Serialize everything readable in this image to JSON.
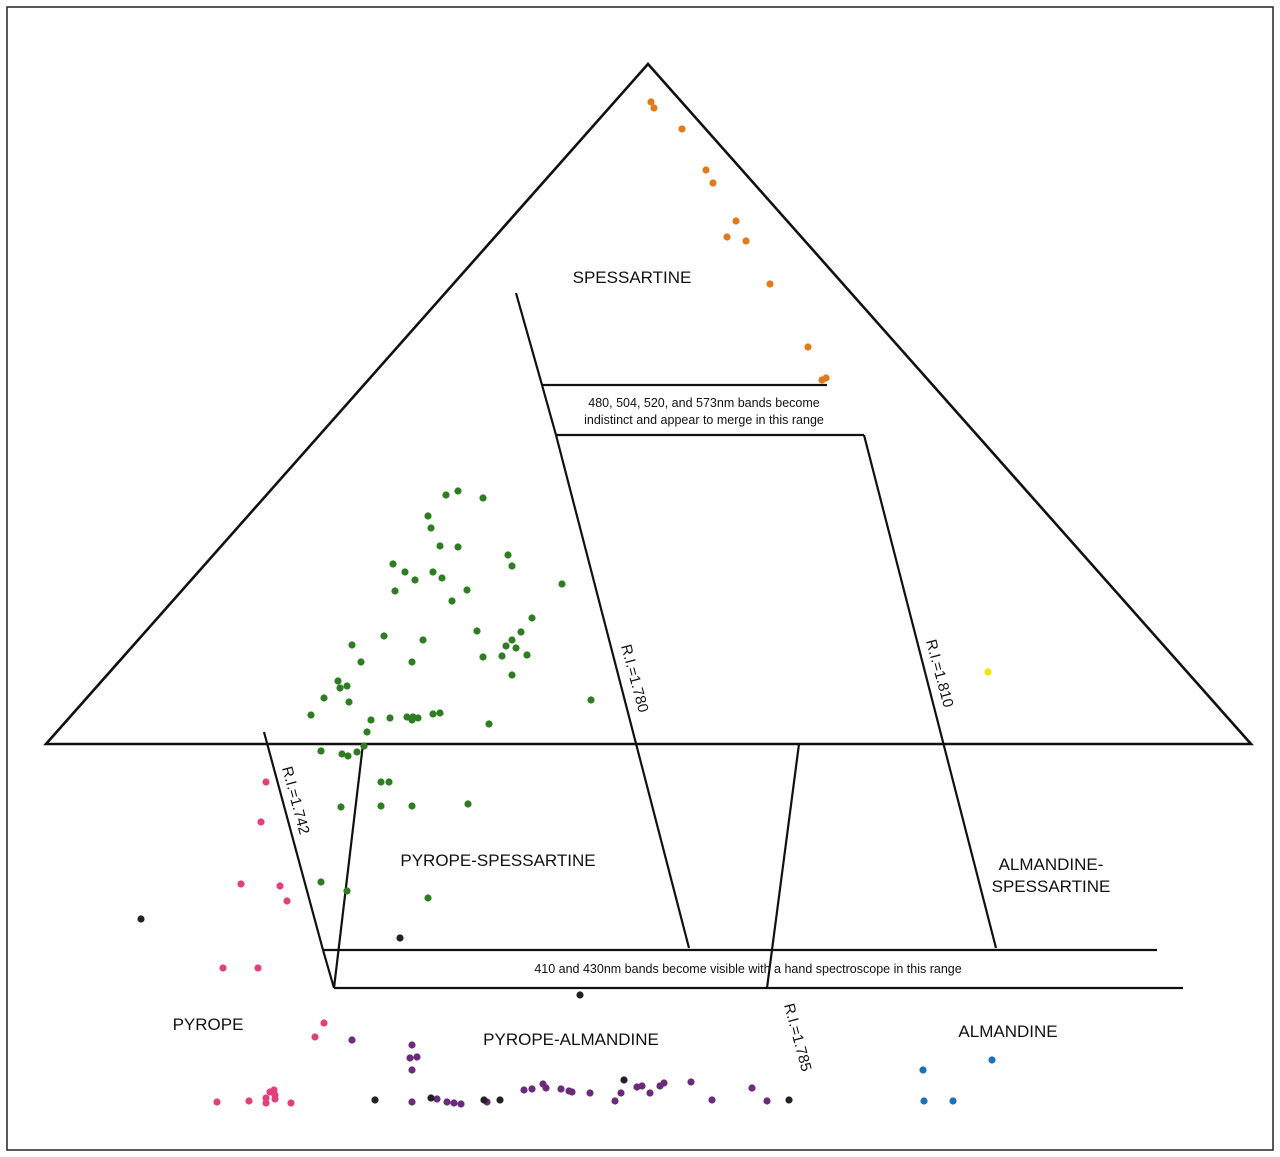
{
  "diagram": {
    "regions": {
      "spessartine": "SPESSARTINE",
      "pyrope_spessartine": "PYROPE-SPESSARTINE",
      "almandine_spessartine_line1": "ALMANDINE-",
      "almandine_spessartine_line2": "SPESSARTINE",
      "pyrope": "PYROPE",
      "pyrope_almandine": "PYROPE-ALMANDINE",
      "almandine": "ALMANDINE"
    },
    "band_notes": {
      "upper_line1": "480, 504, 520, and 573nm bands become",
      "upper_line2": "indistinct and appear to merge in this range",
      "lower": "410 and 430nm bands become visible with a hand spectroscope in this range"
    },
    "ri_lines": {
      "ri_1742": "R.I.=1.742",
      "ri_1780": "R.I.=1.780",
      "ri_1810": "R.I.=1.810",
      "ri_1785": "R.I.=1.785"
    },
    "colors": {
      "spessartine": "#e07a1f",
      "pyrope_spessartine": "#2e7d22",
      "pyrope": "#e2407a",
      "pyrope_almandine": "#6a2c7a",
      "dark": "#222222",
      "almandine": "#1f6fb5",
      "yellow": "#f2e600"
    },
    "point_groups": [
      {
        "group": "spessartine",
        "color_key": "spessartine",
        "count": 12
      },
      {
        "group": "pyrope_spessartine",
        "color_key": "pyrope_spessartine",
        "count": 64
      },
      {
        "group": "pyrope",
        "color_key": "pyrope",
        "count": 18
      },
      {
        "group": "pyrope_almandine",
        "color_key": "pyrope_almandine",
        "count": 30
      },
      {
        "group": "dark",
        "color_key": "dark",
        "count": 9
      },
      {
        "group": "almandine",
        "color_key": "almandine",
        "count": 4
      },
      {
        "group": "yellow",
        "color_key": "yellow",
        "count": 1
      }
    ]
  }
}
